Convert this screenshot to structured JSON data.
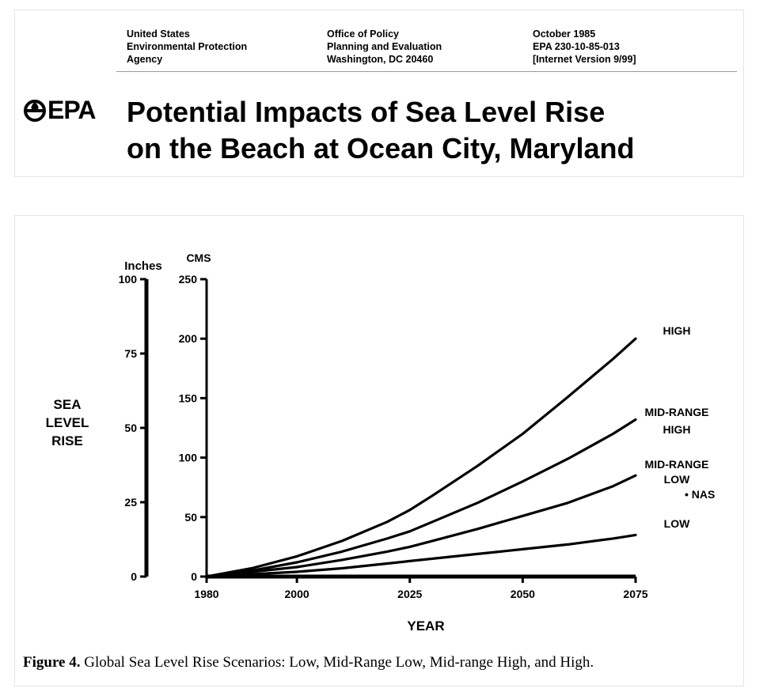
{
  "header": {
    "col1": [
      "United States",
      "Environmental Protection",
      "Agency"
    ],
    "col2": [
      "Office of Policy",
      "Planning and Evaluation",
      "Washington, DC  20460"
    ],
    "col3": [
      "October 1985",
      "EPA 230-10-85-013",
      "[Internet Version 9/99]"
    ],
    "logo_text": "EPA",
    "title_line1": "Potential Impacts of Sea Level Rise",
    "title_line2": "on the Beach at Ocean City, Maryland"
  },
  "caption": {
    "label": "Figure 4.",
    "text": " Global Sea Level Rise Scenarios: Low, Mid-Range Low, Mid-range High, and High."
  },
  "chart_data": {
    "type": "line",
    "title": "",
    "xlabel": "YEAR",
    "ylabel": "SEA LEVEL RISE",
    "ylabel_lines": [
      "SEA",
      "LEVEL",
      "RISE"
    ],
    "left_axis_unit": "Inches",
    "right_axis_unit": "CMS",
    "xlim": [
      1980,
      2075
    ],
    "ylim_cm": [
      0,
      250
    ],
    "ylim_inches": [
      0,
      100
    ],
    "x_ticks": [
      1980,
      2000,
      2025,
      2050,
      2075
    ],
    "x_tick_labels": [
      "1980",
      "2000",
      "2025",
      "2050",
      "2075"
    ],
    "y_ticks_cm": [
      0,
      50,
      100,
      150,
      200,
      250
    ],
    "y_tick_labels_cm": [
      "0",
      "50",
      "100",
      "150",
      "200",
      "250"
    ],
    "y_ticks_inches": [
      0,
      25,
      50,
      75,
      100
    ],
    "y_tick_labels_inches": [
      "0",
      "25",
      "50",
      "75",
      "100"
    ],
    "grid": false,
    "x": [
      1980,
      1990,
      2000,
      2010,
      2020,
      2025,
      2030,
      2040,
      2050,
      2060,
      2070,
      2075
    ],
    "series": [
      {
        "name": "HIGH",
        "label_lines": [
          "HIGH"
        ],
        "color": "#000000",
        "values": [
          0,
          7,
          17,
          30,
          46,
          56,
          68,
          93,
          120,
          151,
          183,
          200
        ]
      },
      {
        "name": "MID-RANGE HIGH",
        "label_lines": [
          "MID-RANGE",
          "HIGH"
        ],
        "color": "#000000",
        "values": [
          0,
          5,
          12,
          21,
          32,
          38,
          46,
          62,
          80,
          99,
          120,
          132
        ]
      },
      {
        "name": "MID-RANGE LOW",
        "label_lines": [
          "MID-RANGE",
          "LOW"
        ],
        "color": "#000000",
        "values": [
          0,
          4,
          8,
          14,
          21,
          25,
          30,
          40,
          51,
          62,
          76,
          85
        ]
      },
      {
        "name": "LOW",
        "label_lines": [
          "LOW"
        ],
        "color": "#000000",
        "values": [
          0,
          2,
          4,
          7,
          11,
          13,
          15,
          19,
          23,
          27,
          32,
          35
        ]
      }
    ],
    "annotations": [
      {
        "text": "• NAS",
        "x": 2075,
        "y_cm": 73
      }
    ]
  }
}
